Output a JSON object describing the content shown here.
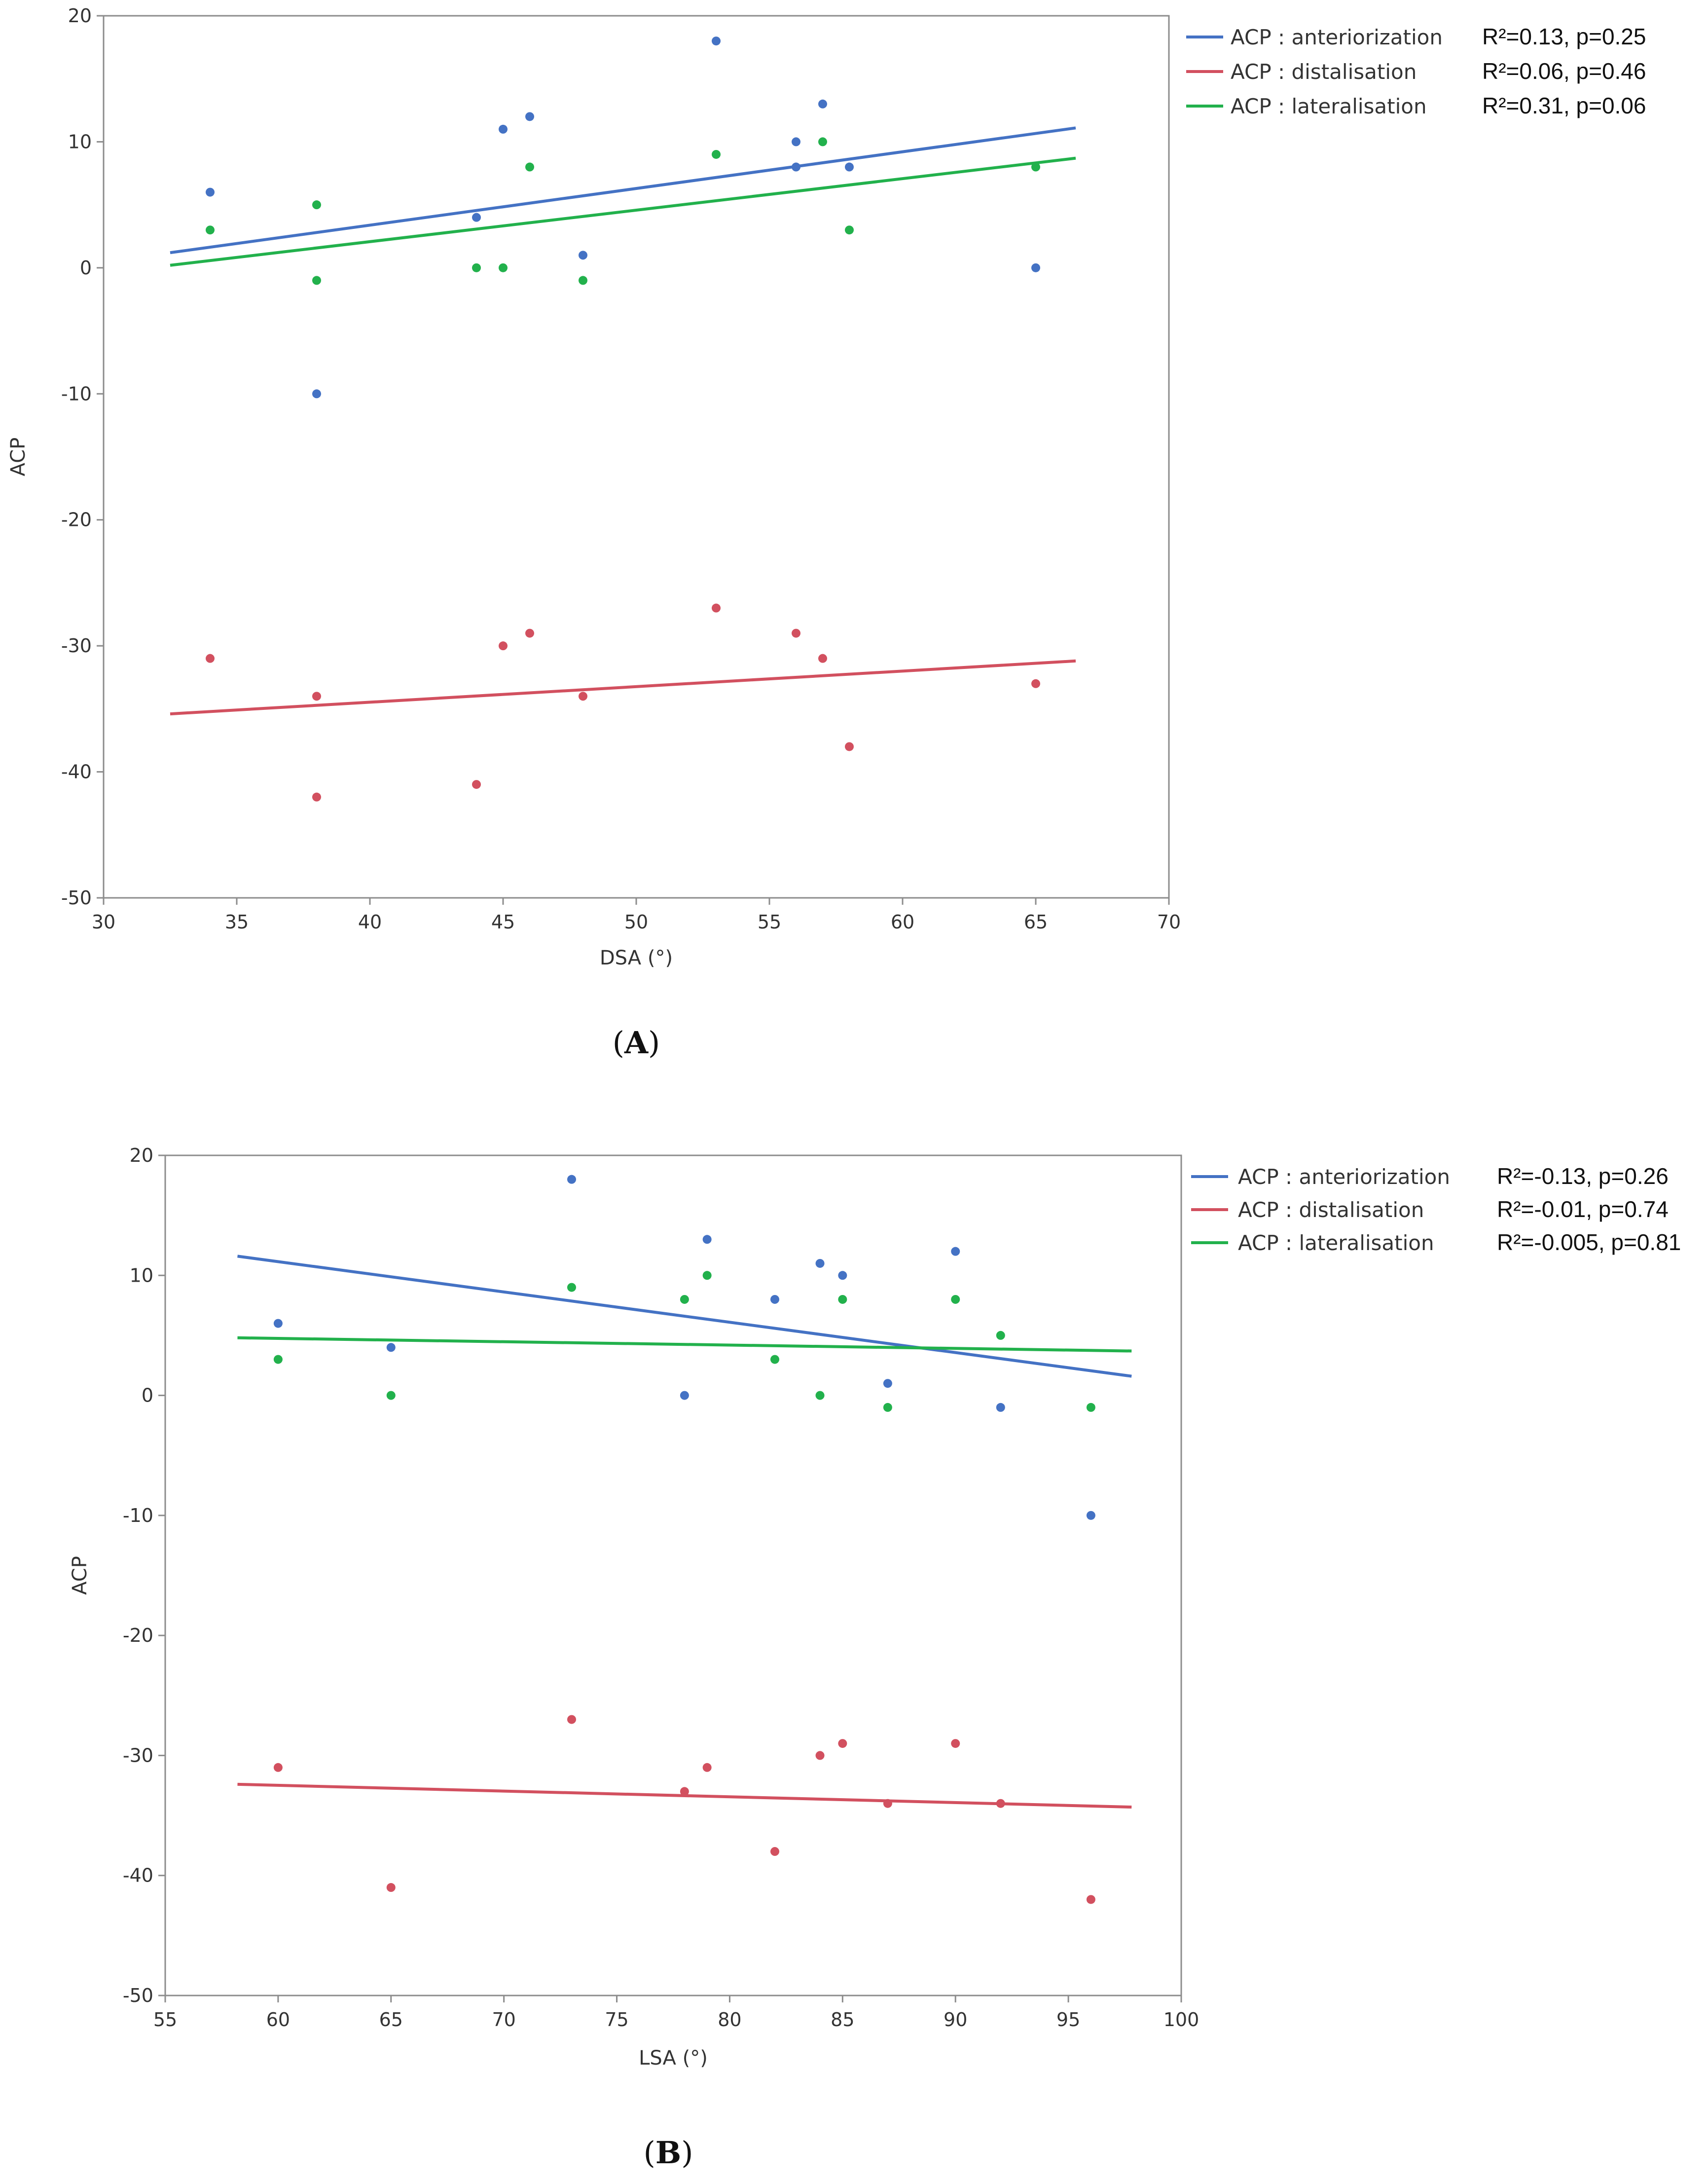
{
  "chart_data": [
    {
      "id": "A",
      "type": "scatter",
      "panel_label": "A",
      "title": "",
      "xlabel": "DSA (°)",
      "ylabel": "ACP",
      "xlim": [
        30,
        70
      ],
      "ylim": [
        -50,
        20
      ],
      "xticks": [
        30,
        35,
        40,
        45,
        50,
        55,
        60,
        65,
        70
      ],
      "yticks": [
        20,
        10,
        0,
        -10,
        -20,
        -30,
        -40,
        -50
      ],
      "grid": false,
      "legend_position": "top-right-outside",
      "series": [
        {
          "name": "ACP : anteriorization",
          "stats": "R²=0.13, p=0.25",
          "color": "#4472c4",
          "points": [
            [
              34,
              6
            ],
            [
              38,
              -10
            ],
            [
              44,
              4
            ],
            [
              45,
              11
            ],
            [
              46,
              12
            ],
            [
              48,
              1
            ],
            [
              53,
              18
            ],
            [
              56,
              10
            ],
            [
              56,
              8
            ],
            [
              57,
              13
            ],
            [
              58,
              8
            ],
            [
              65,
              0
            ]
          ],
          "fit": [
            [
              32.5,
              1.2
            ],
            [
              66.5,
              11.1
            ]
          ]
        },
        {
          "name": "ACP : distalisation",
          "stats": "R²=0.06, p=0.46",
          "color": "#d2505f",
          "points": [
            [
              34,
              -31
            ],
            [
              38,
              -34
            ],
            [
              38,
              -42
            ],
            [
              44,
              -41
            ],
            [
              45,
              -30
            ],
            [
              46,
              -29
            ],
            [
              48,
              -34
            ],
            [
              53,
              -27
            ],
            [
              56,
              -29
            ],
            [
              57,
              -31
            ],
            [
              58,
              -38
            ],
            [
              65,
              -33
            ]
          ],
          "fit": [
            [
              32.5,
              -35.4
            ],
            [
              66.5,
              -31.2
            ]
          ]
        },
        {
          "name": "ACP : lateralisation",
          "stats": "R²=0.31, p=0.06",
          "color": "#22b14c",
          "points": [
            [
              34,
              3
            ],
            [
              38,
              5
            ],
            [
              38,
              -1
            ],
            [
              44,
              0
            ],
            [
              45,
              0
            ],
            [
              46,
              8
            ],
            [
              48,
              -1
            ],
            [
              53,
              9
            ],
            [
              57,
              10
            ],
            [
              58,
              3
            ],
            [
              65,
              8
            ]
          ],
          "fit": [
            [
              32.5,
              0.2
            ],
            [
              66.5,
              8.7
            ]
          ]
        }
      ]
    },
    {
      "id": "B",
      "type": "scatter",
      "panel_label": "B",
      "title": "",
      "xlabel": "LSA (°)",
      "ylabel": "ACP",
      "xlim": [
        55,
        100
      ],
      "ylim": [
        -50,
        20
      ],
      "xticks": [
        55,
        60,
        65,
        70,
        75,
        80,
        85,
        90,
        95,
        100
      ],
      "yticks": [
        20,
        10,
        0,
        -10,
        -20,
        -30,
        -40,
        -50
      ],
      "grid": false,
      "legend_position": "top-right-outside",
      "series": [
        {
          "name": "ACP : anteriorization",
          "stats": "R²=-0.13, p=0.26",
          "color": "#4472c4",
          "points": [
            [
              60,
              6
            ],
            [
              65,
              4
            ],
            [
              73,
              18
            ],
            [
              78,
              0
            ],
            [
              79,
              13
            ],
            [
              82,
              8
            ],
            [
              84,
              11
            ],
            [
              85,
              10
            ],
            [
              87,
              1
            ],
            [
              90,
              12
            ],
            [
              92,
              -1
            ],
            [
              96,
              -10
            ]
          ],
          "fit": [
            [
              58.2,
              11.6
            ],
            [
              97.8,
              1.6
            ]
          ]
        },
        {
          "name": "ACP : distalisation",
          "stats": "R²=-0.01, p=0.74",
          "color": "#d2505f",
          "points": [
            [
              60,
              -31
            ],
            [
              65,
              -41
            ],
            [
              73,
              -27
            ],
            [
              78,
              -33
            ],
            [
              79,
              -31
            ],
            [
              82,
              -38
            ],
            [
              84,
              -30
            ],
            [
              85,
              -29
            ],
            [
              87,
              -34
            ],
            [
              90,
              -29
            ],
            [
              92,
              -34
            ],
            [
              96,
              -42
            ]
          ],
          "fit": [
            [
              58.2,
              -32.4
            ],
            [
              97.8,
              -34.3
            ]
          ]
        },
        {
          "name": "ACP : lateralisation",
          "stats": "R²=-0.005, p=0.81",
          "color": "#22b14c",
          "points": [
            [
              60,
              3
            ],
            [
              65,
              0
            ],
            [
              73,
              9
            ],
            [
              78,
              8
            ],
            [
              79,
              10
            ],
            [
              82,
              3
            ],
            [
              84,
              0
            ],
            [
              85,
              8
            ],
            [
              87,
              -1
            ],
            [
              90,
              8
            ],
            [
              92,
              5
            ],
            [
              96,
              -1
            ]
          ],
          "fit": [
            [
              58.2,
              4.8
            ],
            [
              97.8,
              3.7
            ]
          ]
        }
      ]
    }
  ]
}
